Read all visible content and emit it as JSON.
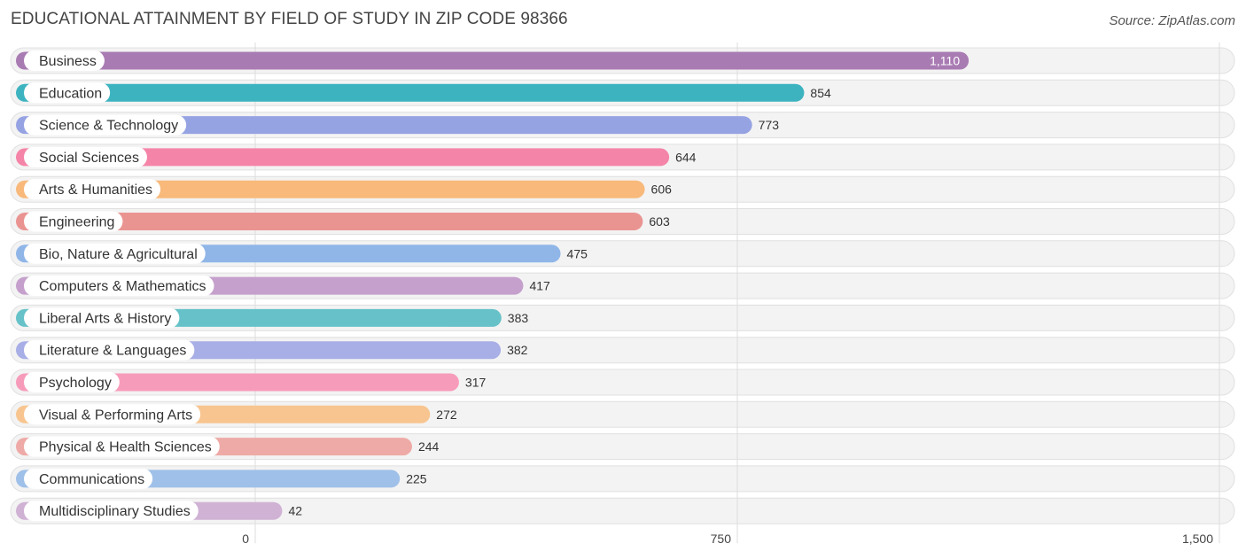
{
  "chart_data": {
    "type": "bar",
    "orientation": "horizontal",
    "title": "EDUCATIONAL ATTAINMENT BY FIELD OF STUDY IN ZIP CODE 98366",
    "source": "Source: ZipAtlas.com",
    "xlabel": "",
    "ylabel": "",
    "xlim": [
      0,
      1500
    ],
    "grid": true,
    "ticks": [
      {
        "value": 0,
        "label": "0"
      },
      {
        "value": 750,
        "label": "750"
      },
      {
        "value": 1500,
        "label": "1,500"
      }
    ],
    "categories": [
      "Business",
      "Education",
      "Science & Technology",
      "Social Sciences",
      "Arts & Humanities",
      "Engineering",
      "Bio, Nature & Agricultural",
      "Computers & Mathematics",
      "Liberal Arts & History",
      "Literature & Languages",
      "Psychology",
      "Visual & Performing Arts",
      "Physical & Health Sciences",
      "Communications",
      "Multidisciplinary Studies"
    ],
    "values": [
      1110,
      854,
      773,
      644,
      606,
      603,
      475,
      417,
      383,
      382,
      317,
      272,
      244,
      225,
      42
    ],
    "value_labels": [
      "1,110",
      "854",
      "773",
      "644",
      "606",
      "603",
      "475",
      "417",
      "383",
      "382",
      "317",
      "272",
      "244",
      "225",
      "42"
    ],
    "colors": [
      "#a97bb3",
      "#3db3c0",
      "#96a3e3",
      "#f585a8",
      "#f8b97b",
      "#ea9492",
      "#90b6e8",
      "#c5a0cc",
      "#66c2c8",
      "#a8aee6",
      "#f79bbb",
      "#f8c590",
      "#eeaaa6",
      "#9fc0e8",
      "#d0b2d5"
    ]
  }
}
